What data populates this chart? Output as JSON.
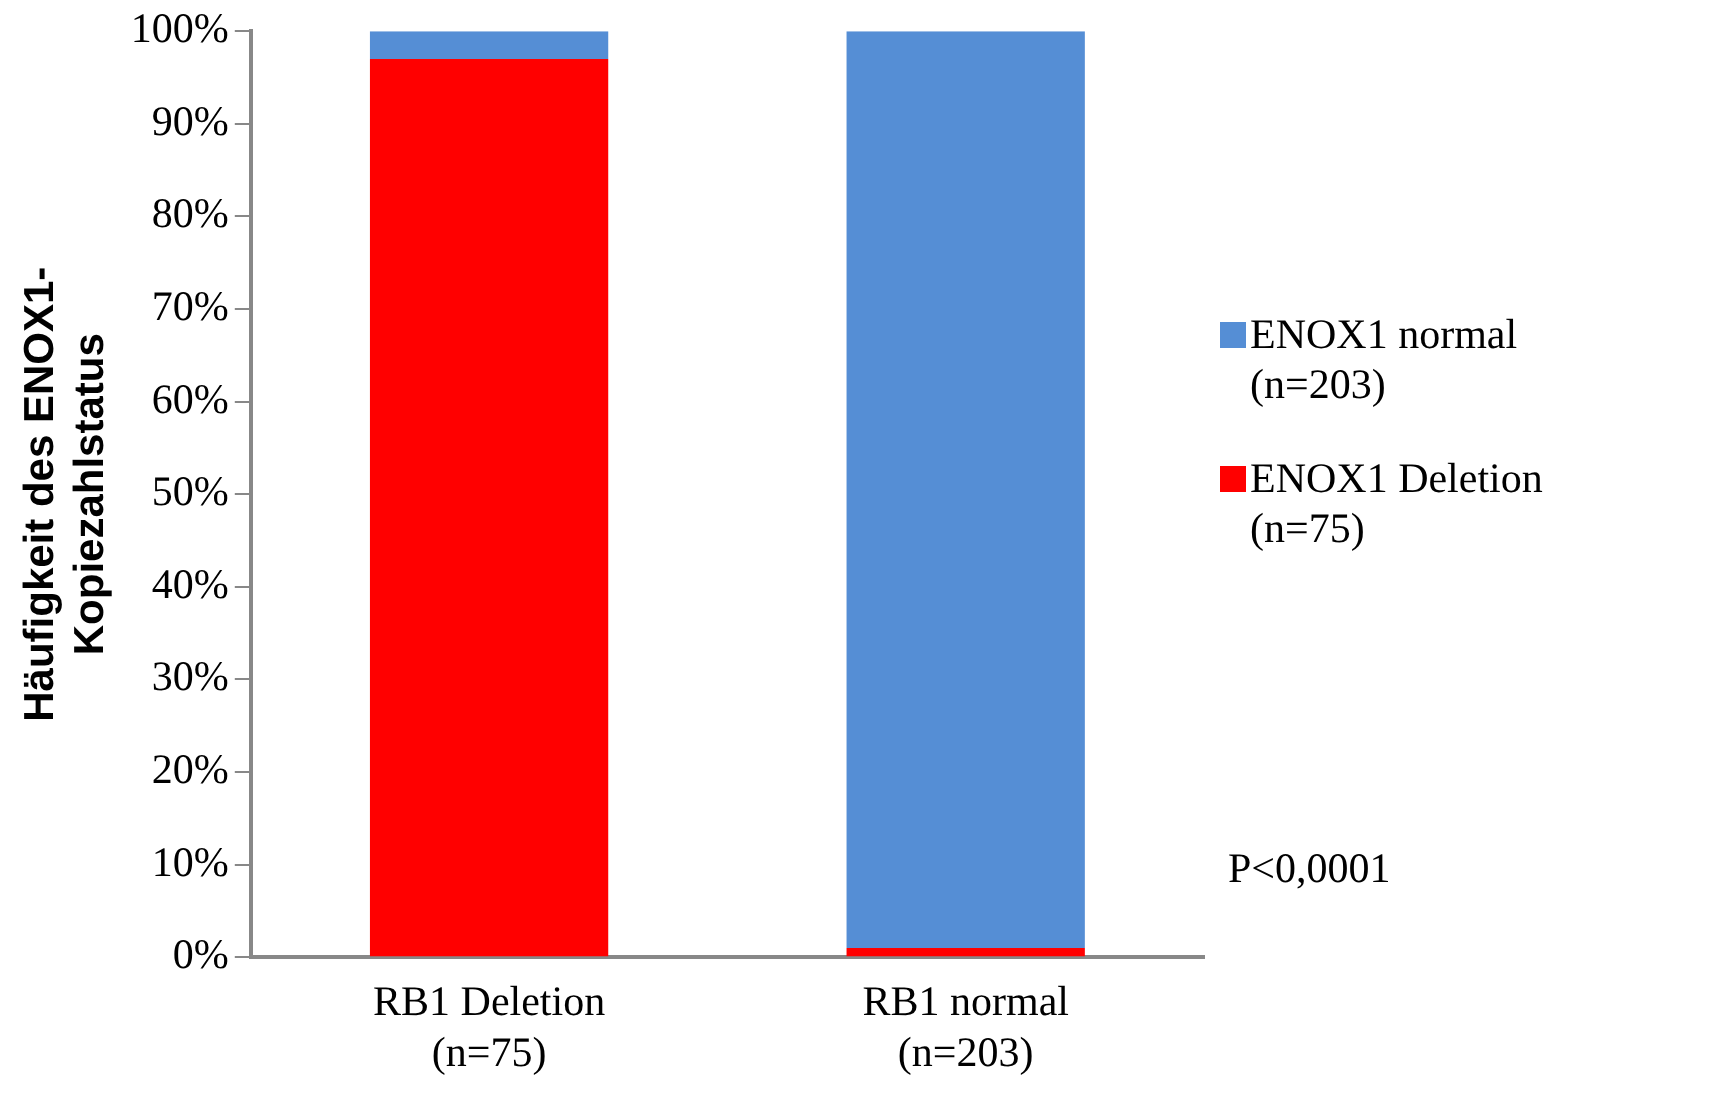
{
  "chart_data": {
    "type": "bar",
    "stacked": true,
    "ylabel": "Häufigkeit des ENOX1-\nKopiezahlstatus",
    "categories": [
      "RB1 Deletion\n(n=75)",
      "RB1 normal\n(n=203)"
    ],
    "series": [
      {
        "name": "ENOX1 Deletion\n(n=75)",
        "color": "#ff0000",
        "values": [
          97,
          1
        ]
      },
      {
        "name": "ENOX1 normal\n(n=203)",
        "color": "#558ed5",
        "values": [
          3,
          99
        ]
      }
    ],
    "ylim": [
      0,
      100
    ],
    "yticks": [
      {
        "value": 0,
        "label": "0%"
      },
      {
        "value": 10,
        "label": "10%"
      },
      {
        "value": 20,
        "label": "20%"
      },
      {
        "value": 30,
        "label": "30%"
      },
      {
        "value": 40,
        "label": "40%"
      },
      {
        "value": 50,
        "label": "50%"
      },
      {
        "value": 60,
        "label": "60%"
      },
      {
        "value": 70,
        "label": "70%"
      },
      {
        "value": 80,
        "label": "80%"
      },
      {
        "value": 90,
        "label": "90%"
      },
      {
        "value": 100,
        "label": "100%"
      }
    ],
    "grid": false,
    "legend": "right",
    "annotations": [
      "P<0,0001"
    ]
  }
}
